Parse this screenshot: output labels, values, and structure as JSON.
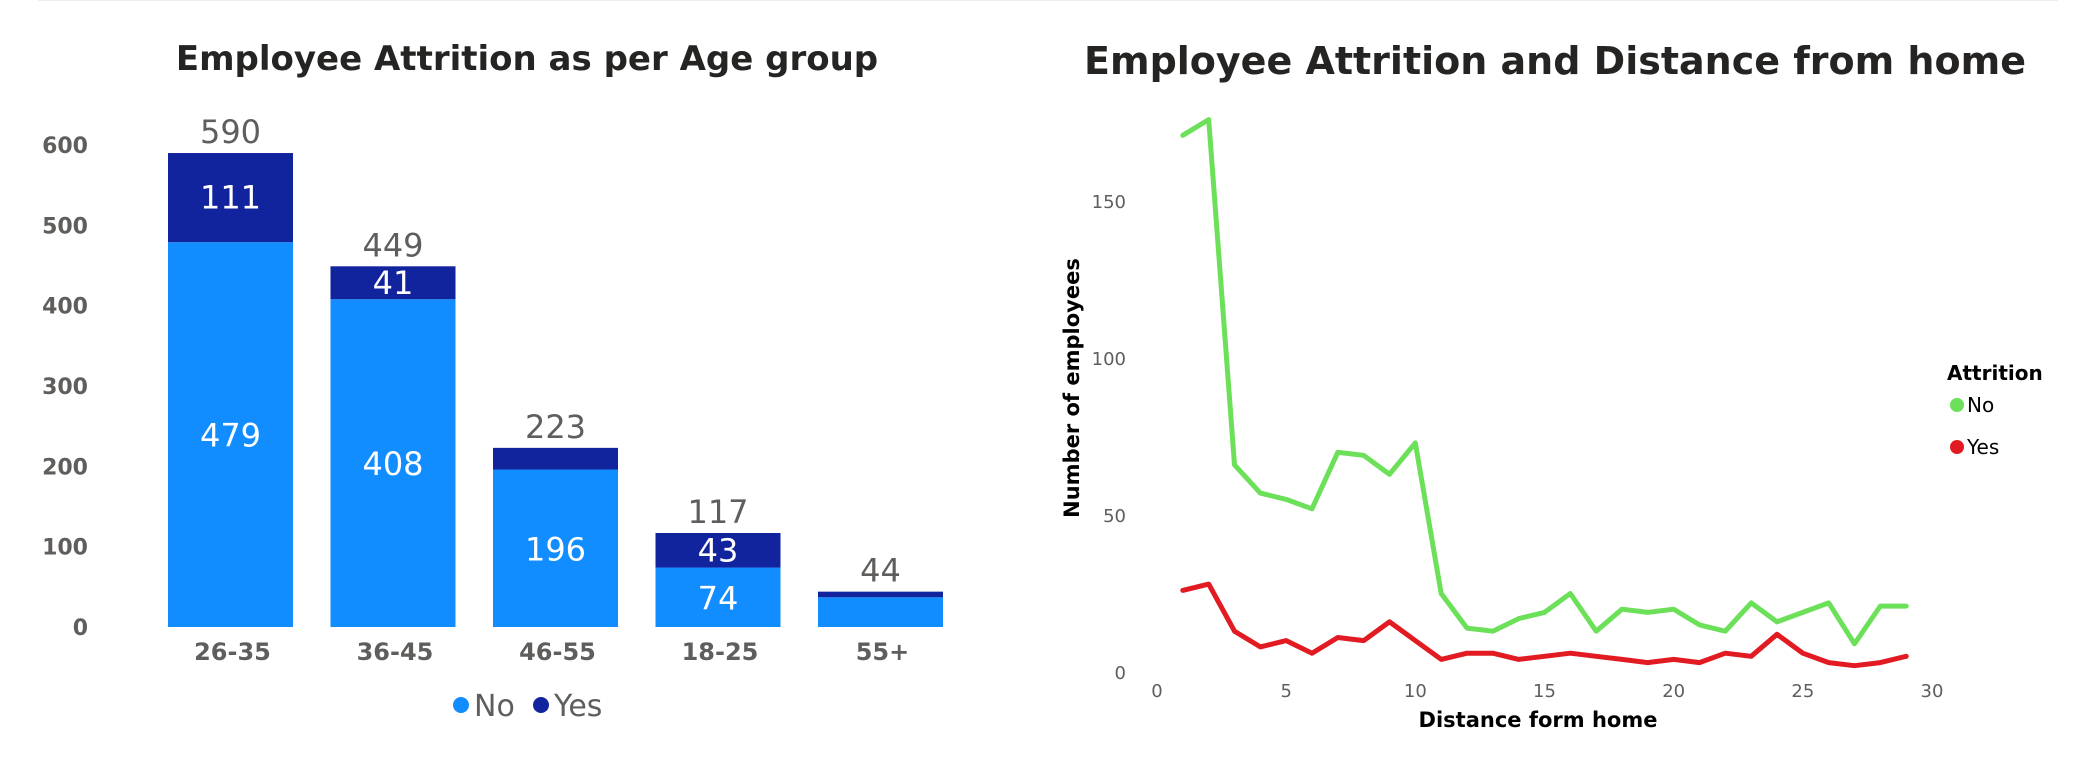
{
  "colors": {
    "no_bar": "#118DFF",
    "yes_bar": "#12239E",
    "no_line": "#6DE05A",
    "yes_line": "#E21B22",
    "text_dark": "#252423",
    "text_gray": "#605E5C"
  },
  "chart_data": [
    {
      "type": "bar",
      "stacked": true,
      "title": "Employee Attrition as per Age group",
      "categories": [
        "26-35",
        "36-45",
        "46-55",
        "18-25",
        "55+"
      ],
      "series": [
        {
          "name": "No",
          "values": [
            479,
            408,
            196,
            74,
            37
          ],
          "labels": [
            "479",
            "408",
            "196",
            "74",
            ""
          ]
        },
        {
          "name": "Yes",
          "values": [
            111,
            41,
            27,
            43,
            7
          ],
          "labels": [
            "111",
            "41",
            "",
            "43",
            ""
          ]
        }
      ],
      "totals": [
        "590",
        "449",
        "223",
        "117",
        "44"
      ],
      "ylim": [
        0,
        600
      ],
      "yticks": [
        "0",
        "100",
        "200",
        "300",
        "400",
        "500",
        "600"
      ],
      "legend_position": "bottom-center",
      "legend": [
        "No",
        "Yes"
      ]
    },
    {
      "type": "line",
      "title": "Employee Attrition and Distance from home",
      "xlabel": "Distance form home",
      "ylabel": "Number of employees",
      "x": [
        1,
        2,
        3,
        4,
        5,
        6,
        7,
        8,
        9,
        10,
        11,
        12,
        13,
        14,
        15,
        16,
        17,
        18,
        19,
        20,
        21,
        22,
        23,
        24,
        25,
        26,
        27,
        28,
        29
      ],
      "series": [
        {
          "name": "No",
          "values": [
            171,
            176,
            66,
            57,
            55,
            52,
            70,
            69,
            63,
            73,
            25,
            14,
            13,
            17,
            19,
            25,
            13,
            20,
            19,
            20,
            15,
            13,
            22,
            16,
            19,
            22,
            9,
            21,
            21
          ]
        },
        {
          "name": "Yes",
          "values": [
            26,
            28,
            13,
            8,
            10,
            6,
            11,
            10,
            16,
            10,
            4,
            6,
            6,
            4,
            5,
            6,
            5,
            4,
            3,
            4,
            3,
            6,
            5,
            12,
            6,
            3,
            2,
            3,
            5
          ]
        }
      ],
      "xlim": [
        0,
        30
      ],
      "ylim": [
        0,
        180
      ],
      "xticks": [
        "0",
        "5",
        "10",
        "15",
        "20",
        "25",
        "30"
      ],
      "yticks": [
        "0",
        "50",
        "100",
        "150"
      ],
      "legend_title": "Attrition",
      "legend_position": "right",
      "legend": [
        "No",
        "Yes"
      ]
    }
  ]
}
